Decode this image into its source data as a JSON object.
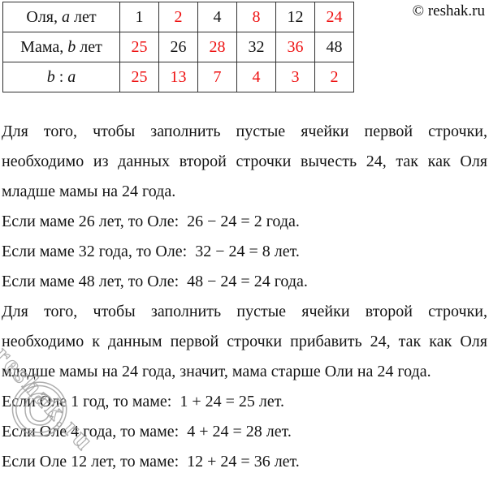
{
  "page": {
    "copyright": "© reshak.ru"
  },
  "colors": {
    "accent_red": "#ee1111",
    "text": "#141414",
    "table_border": "#2f2f2f",
    "watermark": "#a0a0a0"
  },
  "table": {
    "rows": [
      {
        "label_parts": [
          {
            "t": "Оля, ",
            "i": false
          },
          {
            "t": "a",
            "i": true
          },
          {
            "t": " лет",
            "i": false
          }
        ],
        "cells": [
          {
            "v": "1",
            "c": "black"
          },
          {
            "v": "2",
            "c": "red"
          },
          {
            "v": "4",
            "c": "black"
          },
          {
            "v": "8",
            "c": "red"
          },
          {
            "v": "12",
            "c": "black"
          },
          {
            "v": "24",
            "c": "red"
          }
        ]
      },
      {
        "label_parts": [
          {
            "t": "Мама, ",
            "i": false
          },
          {
            "t": "b",
            "i": true
          },
          {
            "t": " лет",
            "i": false
          }
        ],
        "cells": [
          {
            "v": "25",
            "c": "red"
          },
          {
            "v": "26",
            "c": "black"
          },
          {
            "v": "28",
            "c": "red"
          },
          {
            "v": "32",
            "c": "black"
          },
          {
            "v": "36",
            "c": "red"
          },
          {
            "v": "48",
            "c": "black"
          }
        ]
      },
      {
        "label_parts": [
          {
            "t": "b",
            "i": true
          },
          {
            "t": " : ",
            "i": false
          },
          {
            "t": "a",
            "i": true
          }
        ],
        "cells": [
          {
            "v": "25",
            "c": "red"
          },
          {
            "v": "13",
            "c": "red"
          },
          {
            "v": "7",
            "c": "red"
          },
          {
            "v": "4",
            "c": "red"
          },
          {
            "v": "3",
            "c": "red"
          },
          {
            "v": "2",
            "c": "red"
          }
        ]
      }
    ]
  },
  "solution": {
    "paragraphs": [
      {
        "text": "Для того, чтобы заполнить пустые ячейки первой строчки, необходимо из данных второй строчки вычесть 24, так как Оля младше мамы на 24 года.",
        "style": "justify"
      },
      {
        "text": "Если маме 26 лет, то Оле:  26 − 24 = 2 года.",
        "style": "line"
      },
      {
        "text": "Если маме 32 года, то Оле:  32 − 24 = 8 лет.",
        "style": "line"
      },
      {
        "text": "Если маме 48 лет, то Оле:  48 − 24 = 24 года.",
        "style": "line"
      },
      {
        "text": "Для того, чтобы заполнить пустые ячейки второй строчки, необходимо к данным первой строчки прибавить 24, так как Оля младше мамы на 24 года, значит, мама старше Оли на 24 года.",
        "style": "justify"
      },
      {
        "text": "Если Оле 1 год, то маме:  1 + 24 = 25 лет.",
        "style": "line"
      },
      {
        "text": "Если Оле 4 года, то маме:  4 + 24 = 28 лет.",
        "style": "line"
      },
      {
        "text": "Если Оле 12 лет, то маме:  12 + 24 = 36 лет.",
        "style": "line"
      }
    ]
  },
  "watermark": {
    "symbol": "©",
    "text": "reshak.ru"
  }
}
